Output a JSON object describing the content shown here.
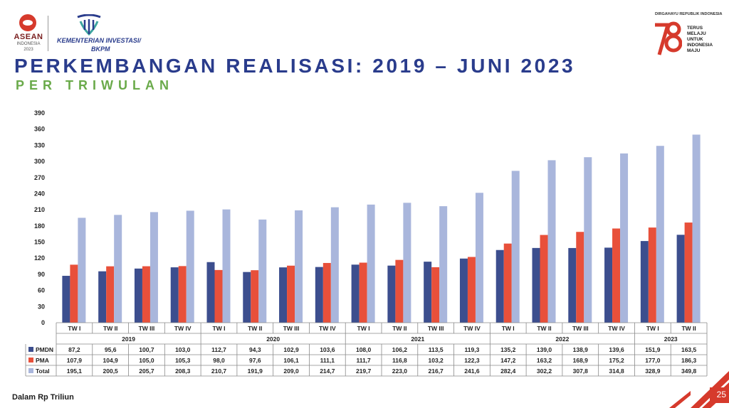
{
  "header": {
    "asean": {
      "name": "ASEAN",
      "country": "INDONESIA",
      "year": "2023"
    },
    "ministry": {
      "name": "KEMENTERIAN INVESTASI/",
      "sub": "BKPM"
    },
    "anniversary": {
      "caption": "DIRGAHAYU REPUBLIK INDONESIA",
      "slogan": [
        "TERUS",
        "MELAJU",
        "UNTUK",
        "INDONESIA",
        "MAJU"
      ]
    }
  },
  "title": "PERKEMBANGAN REALISASI: 2019 – JUNI 2023",
  "subtitle": "PER TRIWULAN",
  "footer": {
    "unit_note": "Dalam Rp Triliun",
    "page_number": "25"
  },
  "colors": {
    "pmdn": "#3c4e8e",
    "pma": "#e8503a",
    "total": "#a9b6dc",
    "title": "#2a3c8c",
    "subtitle": "#6aaa4a",
    "accent": "#d63a2c"
  },
  "chart_data": {
    "type": "bar",
    "yticks": [
      "0",
      "30",
      "60",
      "90",
      "120",
      "150",
      "180",
      "210",
      "240",
      "270",
      "300",
      "330",
      "360",
      "390"
    ],
    "ylim": [
      0,
      390
    ],
    "categories": [
      "TW I",
      "TW II",
      "TW III",
      "TW IV",
      "TW I",
      "TW II",
      "TW III",
      "TW IV",
      "TW I",
      "TW II",
      "TW III",
      "TW IV",
      "TW I",
      "TW II",
      "TW III",
      "TW IV",
      "TW I",
      "TW II"
    ],
    "years": [
      {
        "label": "2019",
        "quarters": 4
      },
      {
        "label": "2020",
        "quarters": 4
      },
      {
        "label": "2021",
        "quarters": 4
      },
      {
        "label": "2022",
        "quarters": 4
      },
      {
        "label": "2023",
        "quarters": 2
      }
    ],
    "series": [
      {
        "name": "PMDN",
        "values": [
          87.2,
          95.6,
          100.7,
          103.0,
          112.7,
          94.3,
          102.9,
          103.6,
          108.0,
          106.2,
          113.5,
          119.3,
          135.2,
          139.0,
          138.9,
          139.6,
          151.9,
          163.5
        ],
        "labels": [
          "87,2",
          "95,6",
          "100,7",
          "103,0",
          "112,7",
          "94,3",
          "102,9",
          "103,6",
          "108,0",
          "106,2",
          "113,5",
          "119,3",
          "135,2",
          "139,0",
          "138,9",
          "139,6",
          "151,9",
          "163,5"
        ]
      },
      {
        "name": "PMA",
        "values": [
          107.9,
          104.9,
          105.0,
          105.3,
          98.0,
          97.6,
          106.1,
          111.1,
          111.7,
          116.8,
          103.2,
          122.3,
          147.2,
          163.2,
          168.9,
          175.2,
          177.0,
          186.3
        ],
        "labels": [
          "107,9",
          "104,9",
          "105,0",
          "105,3",
          "98,0",
          "97,6",
          "106,1",
          "111,1",
          "111,7",
          "116,8",
          "103,2",
          "122,3",
          "147,2",
          "163,2",
          "168,9",
          "175,2",
          "177,0",
          "186,3"
        ]
      },
      {
        "name": "Total",
        "values": [
          195.1,
          200.5,
          205.7,
          208.3,
          210.7,
          191.9,
          209.0,
          214.7,
          219.7,
          223.0,
          216.7,
          241.6,
          282.4,
          302.2,
          307.8,
          314.8,
          328.9,
          349.8
        ],
        "labels": [
          "195,1",
          "200,5",
          "205,7",
          "208,3",
          "210,7",
          "191,9",
          "209,0",
          "214,7",
          "219,7",
          "223,0",
          "216,7",
          "241,6",
          "282,4",
          "302,2",
          "307,8",
          "314,8",
          "328,9",
          "349,8"
        ]
      }
    ]
  }
}
